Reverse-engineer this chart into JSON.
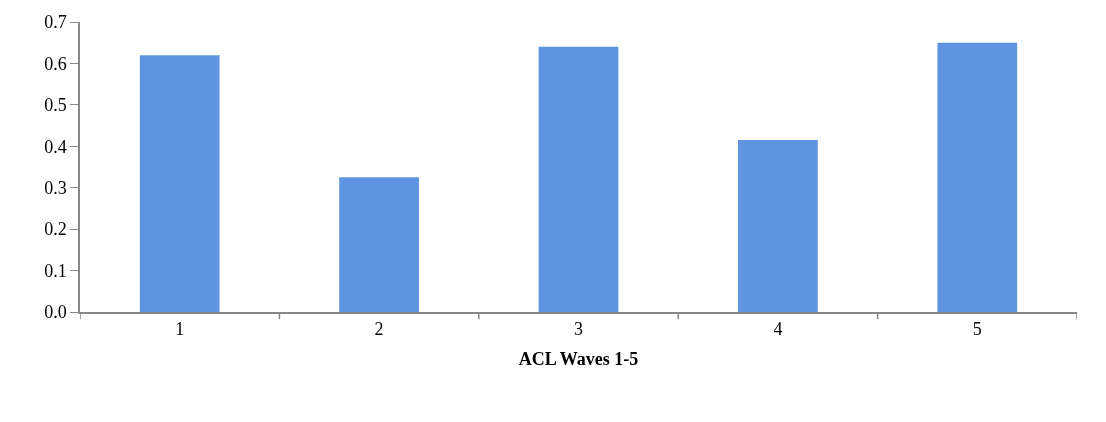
{
  "chart_data": {
    "type": "bar",
    "xlabel": "ACL Waves 1-5",
    "categories": [
      "1",
      "2",
      "3",
      "4",
      "5"
    ],
    "values": [
      0.62,
      0.325,
      0.64,
      0.415,
      0.65
    ],
    "color": "#5f95e0",
    "ylim": [
      0,
      0.7
    ],
    "yticks": [
      {
        "value": 0,
        "label": "0.0"
      },
      0.1,
      0.2,
      0.3,
      0.4,
      0.5,
      0.6,
      0.7
    ]
  }
}
